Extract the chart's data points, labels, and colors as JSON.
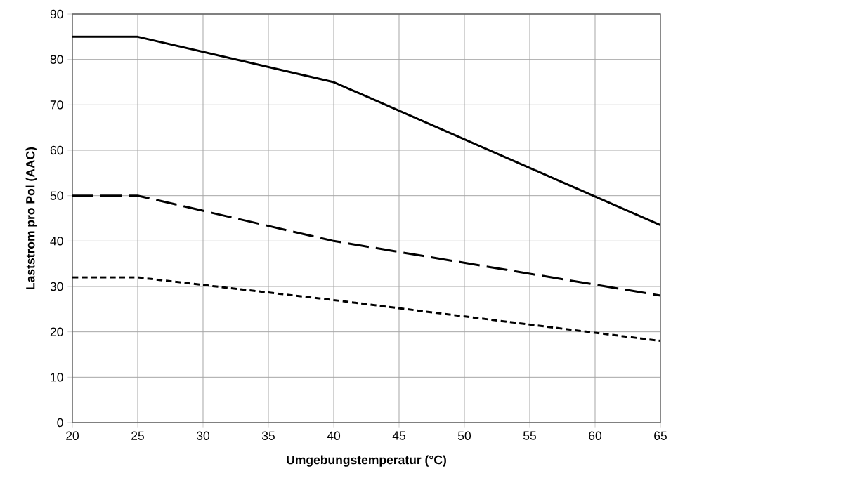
{
  "chart_data": {
    "type": "line",
    "xlabel": "Umgebungstemperatur (°C)",
    "ylabel": "Laststrom pro Pol (AAC)",
    "x": [
      20,
      25,
      40,
      65
    ],
    "series": [
      {
        "color": "#000000",
        "line_style": "solid",
        "values": [
          85,
          85,
          75,
          43.5
        ]
      },
      {
        "color": "#000000",
        "line_style": "dashed",
        "values": [
          50,
          50,
          40,
          28
        ]
      },
      {
        "color": "#000000",
        "line_style": "dotted",
        "values": [
          32,
          32,
          27,
          18
        ]
      }
    ],
    "xlim": [
      20,
      65
    ],
    "ylim": [
      0,
      90
    ],
    "xticks": [
      20,
      25,
      30,
      35,
      40,
      45,
      50,
      55,
      60,
      65
    ],
    "yticks": [
      0,
      10,
      20,
      30,
      40,
      50,
      60,
      70,
      80,
      90
    ],
    "grid": true,
    "marker": "none"
  }
}
